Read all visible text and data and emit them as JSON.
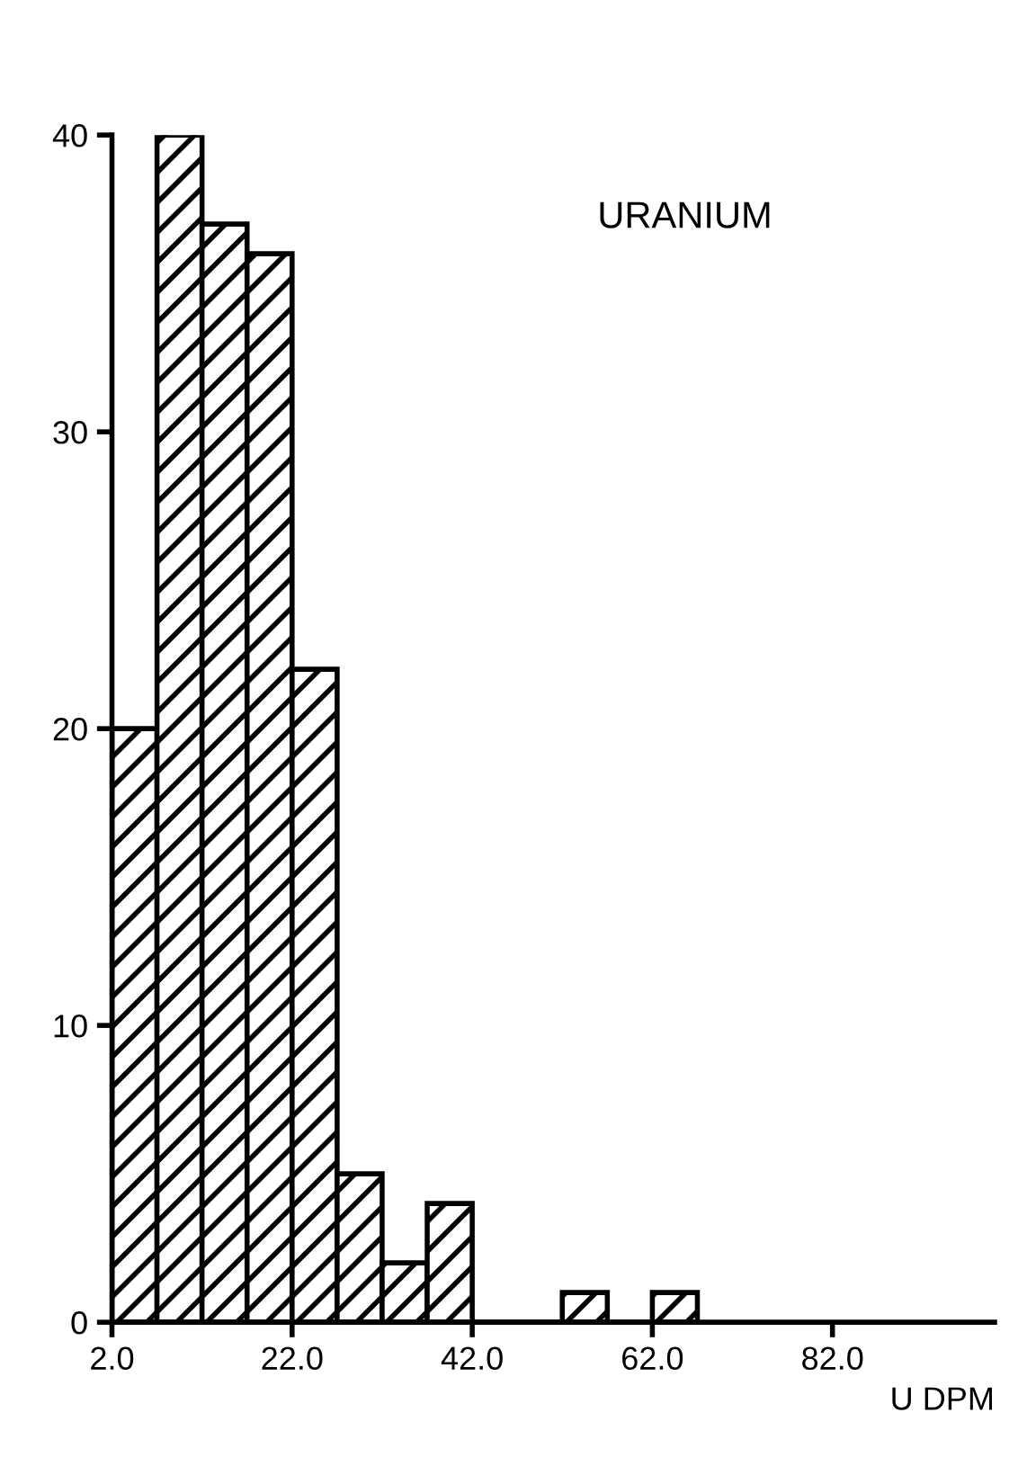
{
  "chart_data": {
    "type": "histogram",
    "bins": [
      2,
      7,
      12,
      17,
      22,
      27,
      32,
      37,
      42,
      47,
      52,
      57,
      62,
      67
    ],
    "values": [
      20,
      40,
      37,
      36,
      22,
      5,
      2,
      4,
      0,
      0,
      1,
      0,
      1
    ],
    "color": "#000000",
    "xlim": [
      2,
      100
    ],
    "xticks": [
      {
        "value": 2,
        "label": "2.0"
      },
      {
        "value": 22,
        "label": "22.0"
      },
      {
        "value": 42,
        "label": "42.0"
      },
      {
        "value": 62,
        "label": "62.0"
      },
      {
        "value": 82,
        "label": "82.0"
      }
    ],
    "ylim": [
      0,
      40
    ],
    "yticks": [
      0,
      10,
      20,
      30,
      40
    ],
    "xlabel": "U DPM",
    "annotations": [
      "URANIUM"
    ],
    "grid": false
  }
}
